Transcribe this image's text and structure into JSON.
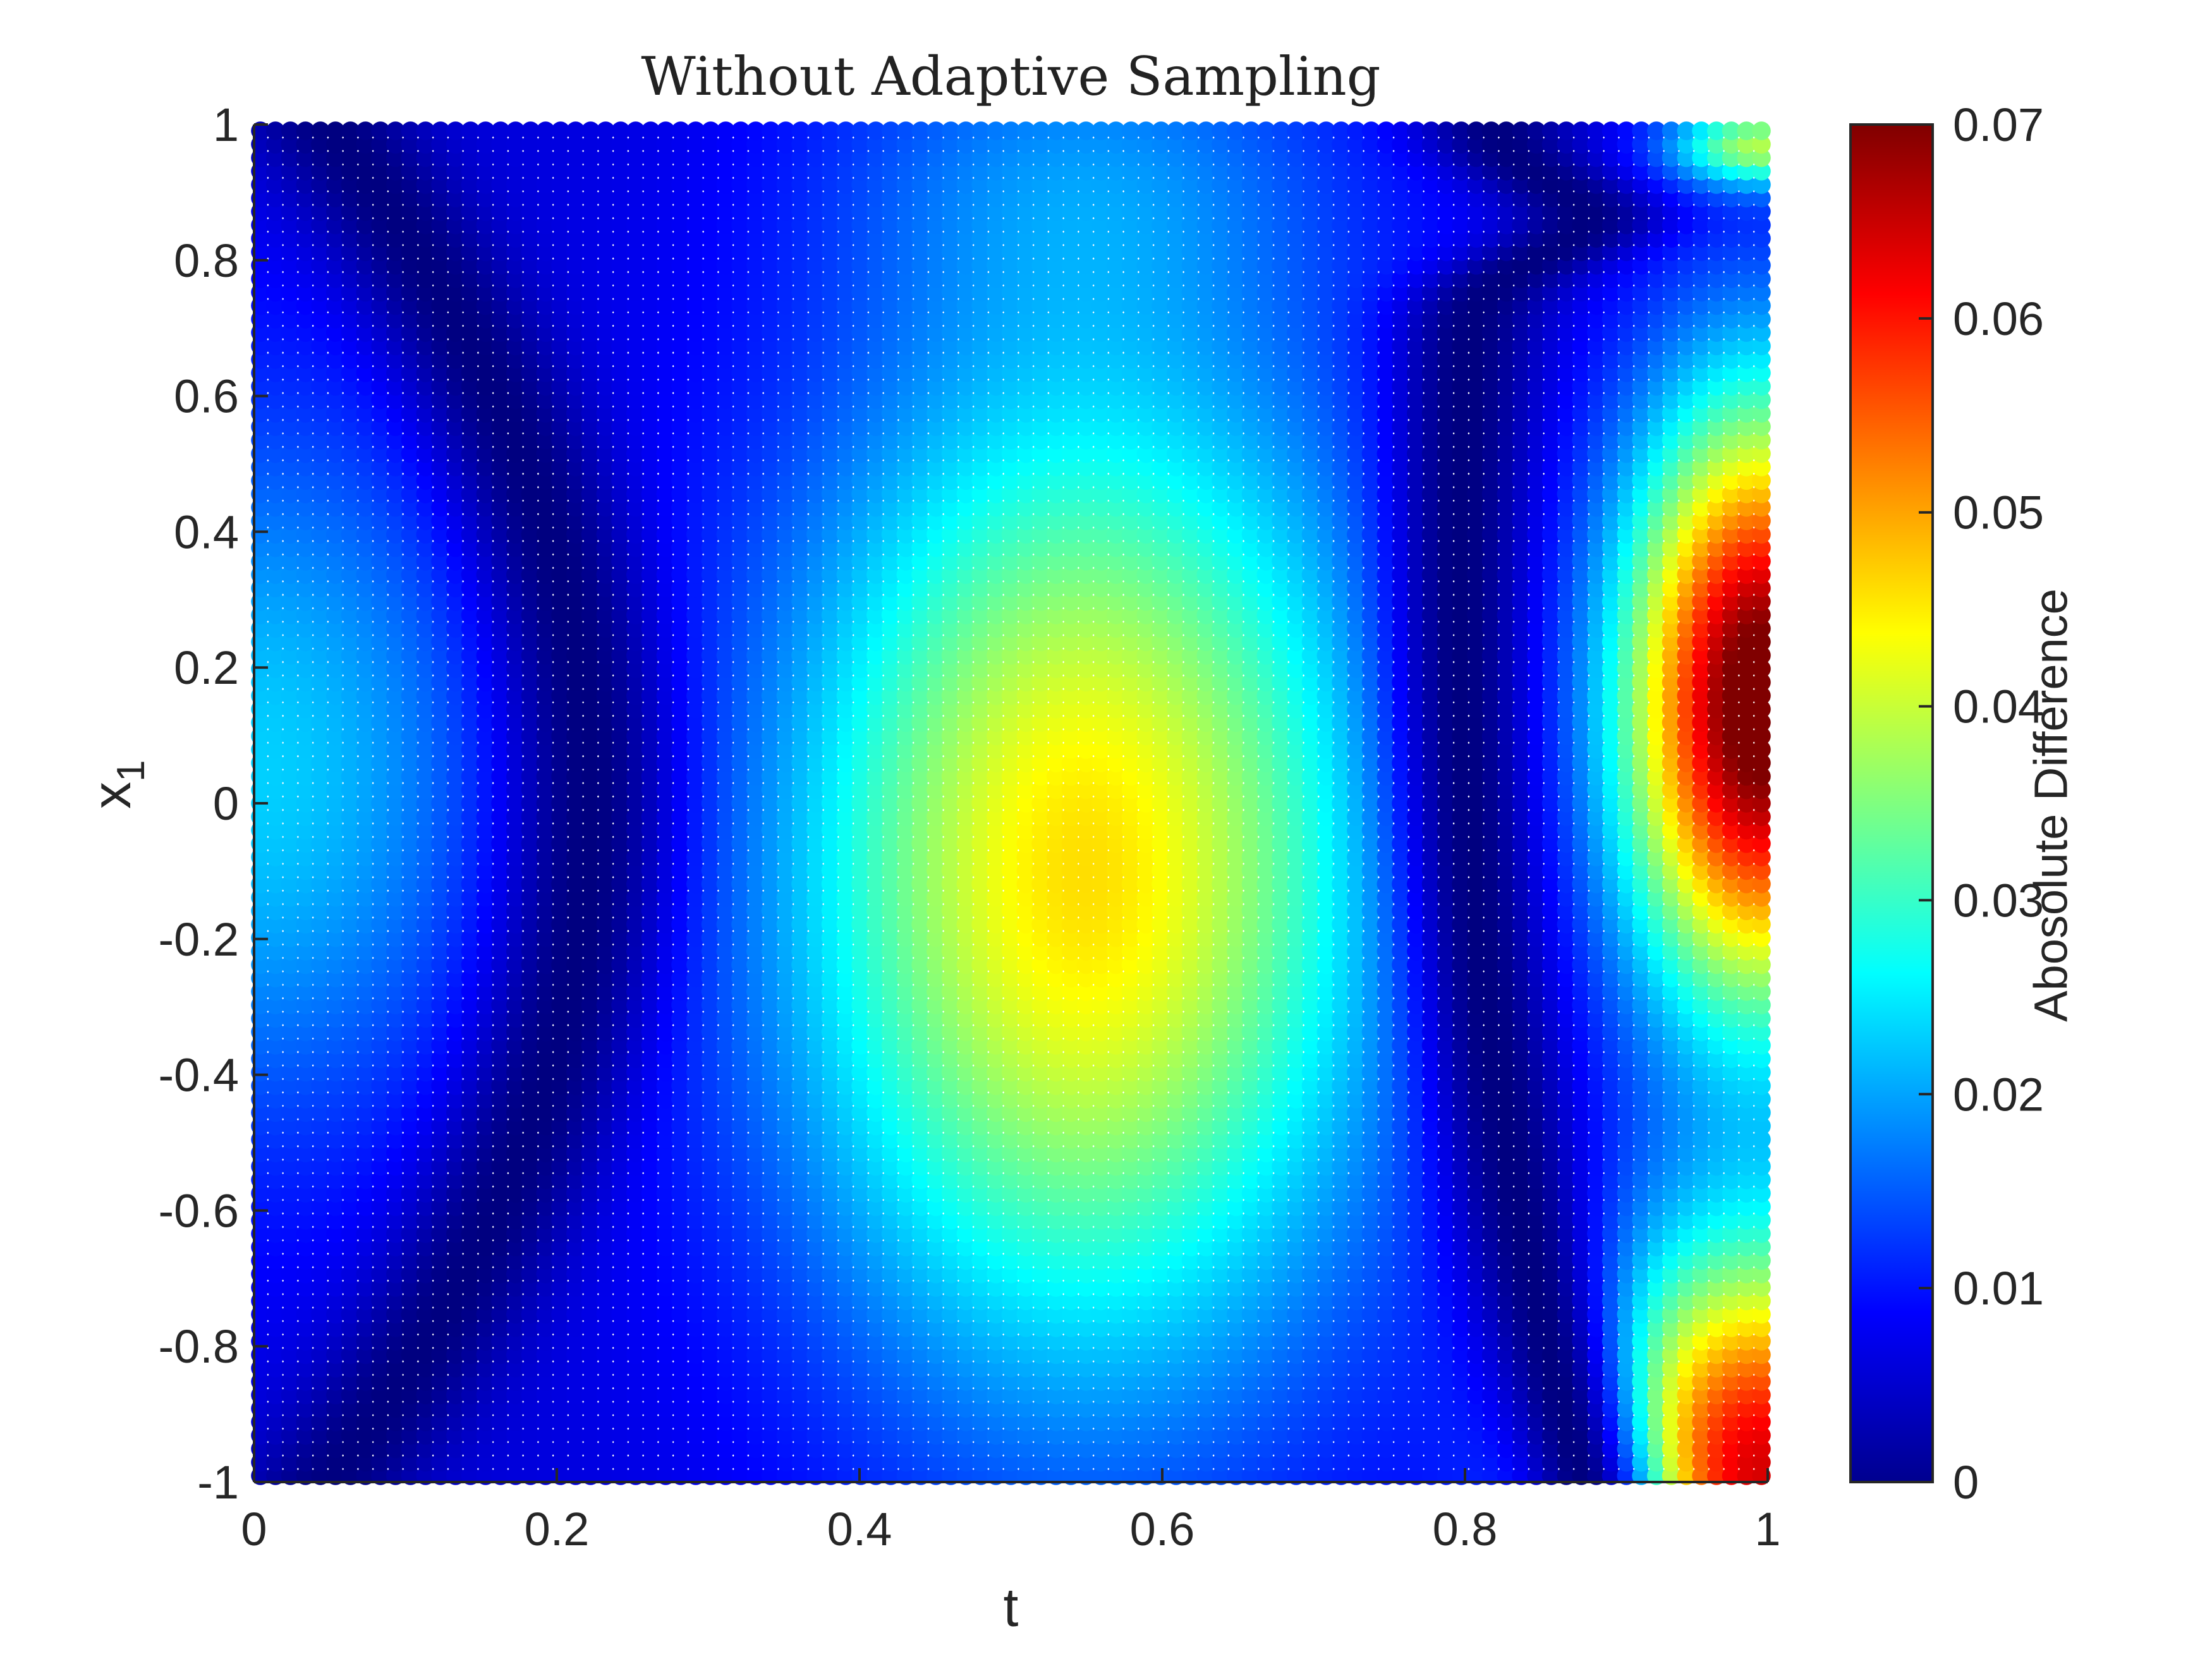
{
  "chart_data": {
    "type": "scatter",
    "title": "Without Adaptive Sampling",
    "xlabel": "t",
    "ylabel_main": "x",
    "ylabel_sub": "1",
    "xlim": [
      0,
      1
    ],
    "ylim": [
      -1,
      1
    ],
    "x_ticks": [
      "0",
      "0.2",
      "0.4",
      "0.6",
      "0.8",
      "1"
    ],
    "y_ticks": [
      "-1",
      "-0.8",
      "-0.6",
      "-0.4",
      "-0.2",
      "0",
      "0.2",
      "0.4",
      "0.6",
      "0.8",
      "1"
    ],
    "grid": false,
    "marker": "filled-circle",
    "grid_points": {
      "t_count": 101,
      "x1_count": 101
    },
    "colormap": "jet",
    "colorbar": {
      "label": "Abosolute Difference",
      "clim": [
        0,
        0.07
      ],
      "ticks": [
        "0",
        "0.01",
        "0.02",
        "0.03",
        "0.04",
        "0.05",
        "0.06",
        "0.07"
      ]
    },
    "features": [
      {
        "description": "near-zero valley",
        "t_at_x1_0": 0.22,
        "curve": "arc bending toward t=0 at x1=±1"
      },
      {
        "description": "near-zero valley",
        "t_at_x1_0": 0.82,
        "curve": "arc bending toward larger t near x1=±0.9"
      },
      {
        "description": "central maximum",
        "t": 0.55,
        "x1": -0.1,
        "value": 0.04
      },
      {
        "description": "edge maximum",
        "t": 1.0,
        "x1": 0.15,
        "value": 0.07
      }
    ]
  }
}
